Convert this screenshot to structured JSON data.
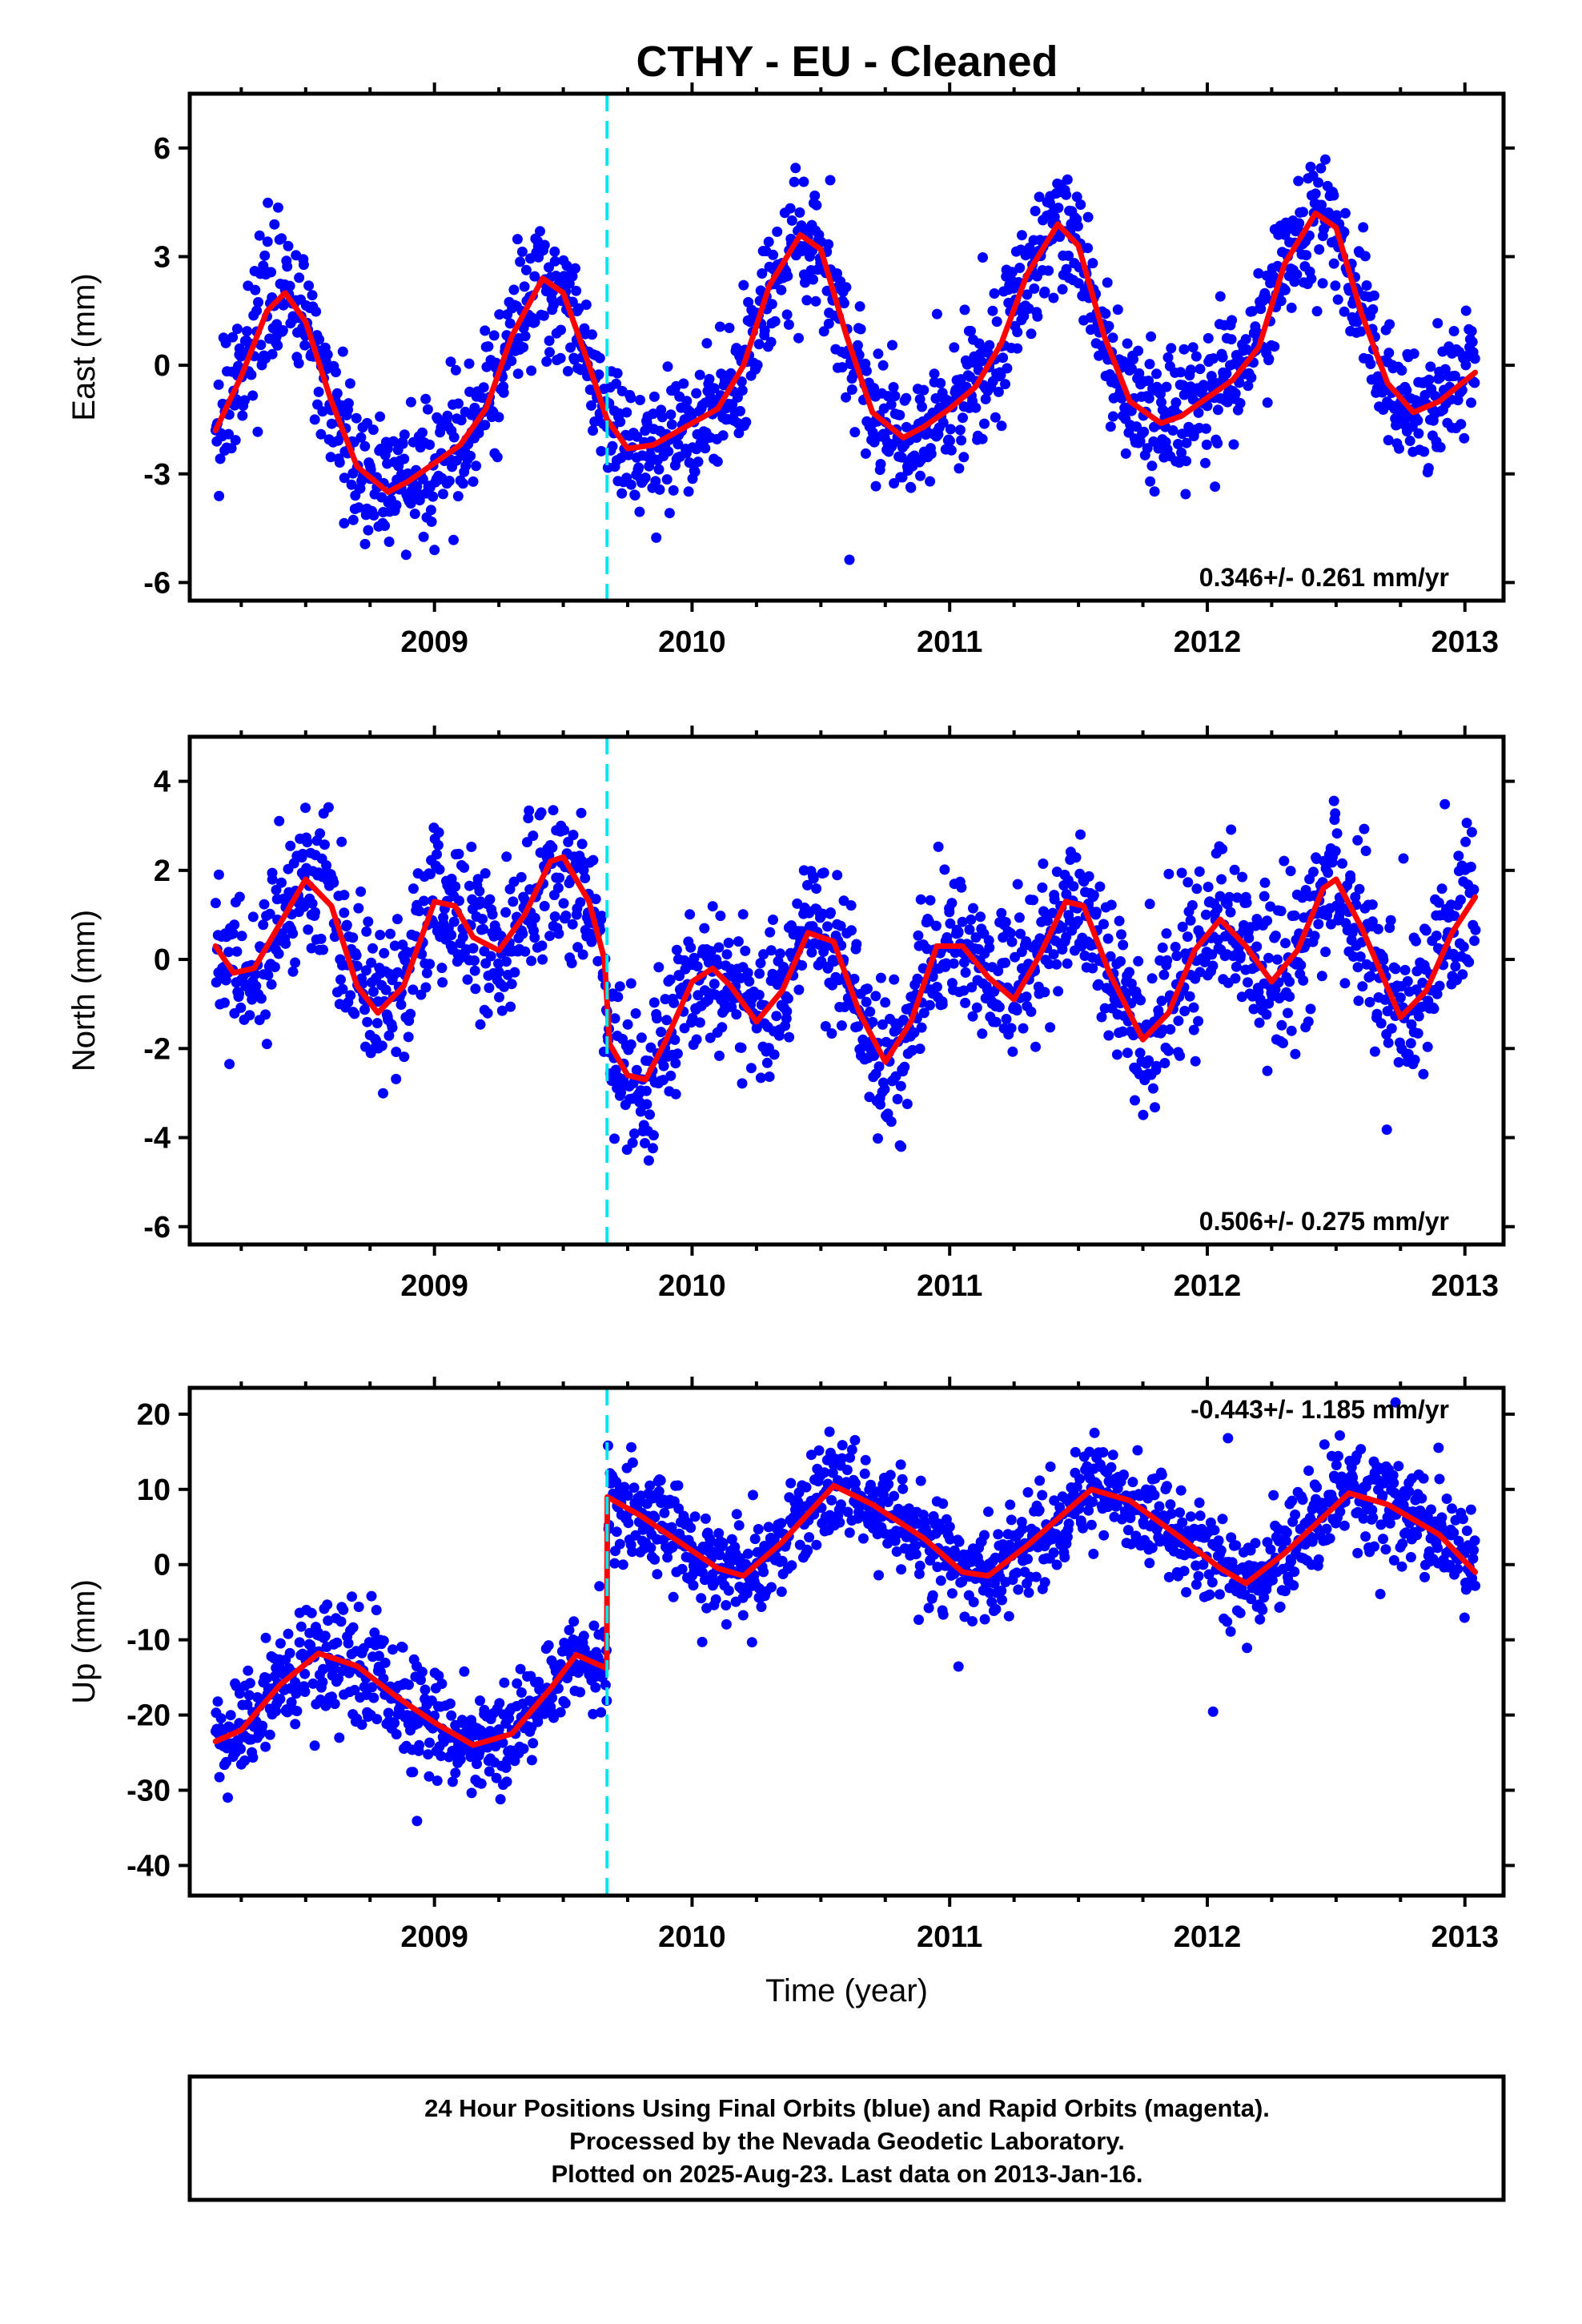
{
  "title": "CTHY  - EU - Cleaned",
  "footer": {
    "line1": "24 Hour Positions Using Final Orbits (blue) and Rapid Orbits (magenta).",
    "line2": "Processed by the Nevada Geodetic Laboratory.",
    "line3": "Plotted on 2025-Aug-23. Last data on 2013-Jan-16."
  },
  "colors": {
    "data_points": "#0000ff",
    "model_fit": "#ff0000",
    "step_line": "#00e5ee",
    "axes": "#000000"
  },
  "chart_data": [
    {
      "type": "scatter",
      "ylabel": "East (mm)",
      "xlabel": "",
      "rate_label": "0.346+/- 0.261 mm/yr",
      "xlim": [
        2008.05,
        2013.15
      ],
      "ylim": [
        -6.5,
        7.5
      ],
      "yticks": [
        -6,
        -3,
        0,
        3,
        6
      ],
      "ytick_labels": [
        "-6",
        "-3",
        "0",
        "3",
        "6"
      ],
      "xticks": [
        2009,
        2010,
        2011,
        2012,
        2013
      ],
      "xtick_labels": [
        "2009",
        "2010",
        "2011",
        "2012",
        "2013"
      ],
      "step_epoch": 2009.67,
      "data_range": [
        2008.15,
        2013.04
      ],
      "model": {
        "name": "fit",
        "x": [
          2008.15,
          2008.25,
          2008.35,
          2008.42,
          2008.5,
          2008.6,
          2008.7,
          2008.82,
          2008.9,
          2009.0,
          2009.1,
          2009.2,
          2009.3,
          2009.42,
          2009.5,
          2009.6,
          2009.67,
          2009.75,
          2009.85,
          2010.0,
          2010.1,
          2010.2,
          2010.3,
          2010.42,
          2010.5,
          2010.6,
          2010.7,
          2010.82,
          2010.9,
          2011.0,
          2011.1,
          2011.2,
          2011.3,
          2011.42,
          2011.5,
          2011.6,
          2011.7,
          2011.82,
          2011.9,
          2012.0,
          2012.1,
          2012.2,
          2012.3,
          2012.42,
          2012.5,
          2012.6,
          2012.7,
          2012.8,
          2012.9,
          2013.04
        ],
        "y": [
          -1.8,
          -0.3,
          1.5,
          2.0,
          1.2,
          -1.0,
          -2.8,
          -3.5,
          -3.2,
          -2.7,
          -2.2,
          -1.2,
          0.8,
          2.4,
          2.0,
          0.0,
          -1.5,
          -2.3,
          -2.2,
          -1.6,
          -1.2,
          0.0,
          2.2,
          3.6,
          3.2,
          0.8,
          -1.3,
          -2.0,
          -1.7,
          -1.2,
          -0.6,
          0.6,
          2.5,
          3.9,
          3.3,
          0.8,
          -1.0,
          -1.6,
          -1.4,
          -0.9,
          -0.4,
          0.5,
          2.8,
          4.2,
          3.8,
          1.4,
          -0.5,
          -1.3,
          -1.0,
          -0.2
        ]
      },
      "points": {
        "name": "daily positions",
        "count": 1700,
        "scatter_sd": 0.9
      }
    },
    {
      "type": "scatter",
      "ylabel": "North (mm)",
      "xlabel": "",
      "rate_label": "0.506+/- 0.275 mm/yr",
      "xlim": [
        2008.05,
        2013.15
      ],
      "ylim": [
        -6.4,
        5.0
      ],
      "yticks": [
        -6,
        -4,
        -2,
        0,
        2,
        4
      ],
      "ytick_labels": [
        "-6",
        "-4",
        "-2",
        "0",
        "2",
        "4"
      ],
      "xticks": [
        2009,
        2010,
        2011,
        2012,
        2013
      ],
      "xtick_labels": [
        "2009",
        "2010",
        "2011",
        "2012",
        "2013"
      ],
      "step_epoch": 2009.67,
      "data_range": [
        2008.15,
        2013.04
      ],
      "model": {
        "name": "fit",
        "x": [
          2008.15,
          2008.22,
          2008.3,
          2008.4,
          2008.5,
          2008.6,
          2008.7,
          2008.78,
          2008.88,
          2009.0,
          2009.08,
          2009.15,
          2009.25,
          2009.35,
          2009.45,
          2009.5,
          2009.6,
          2009.66,
          2009.68,
          2009.75,
          2009.82,
          2009.9,
          2010.0,
          2010.08,
          2010.15,
          2010.25,
          2010.35,
          2010.45,
          2010.55,
          2010.65,
          2010.75,
          2010.85,
          2010.95,
          2011.05,
          2011.15,
          2011.25,
          2011.35,
          2011.45,
          2011.52,
          2011.62,
          2011.75,
          2011.85,
          2011.95,
          2012.05,
          2012.15,
          2012.25,
          2012.35,
          2012.45,
          2012.5,
          2012.6,
          2012.75,
          2012.85,
          2012.95,
          2013.04
        ],
        "y": [
          0.3,
          -0.3,
          -0.2,
          0.8,
          1.8,
          1.2,
          -0.6,
          -1.2,
          -0.6,
          1.3,
          1.2,
          0.5,
          0.2,
          1.0,
          2.2,
          2.3,
          1.3,
          0.0,
          -1.9,
          -2.6,
          -2.7,
          -1.8,
          -0.5,
          -0.2,
          -0.6,
          -1.4,
          -0.7,
          0.6,
          0.4,
          -1.2,
          -2.3,
          -1.4,
          0.3,
          0.3,
          -0.4,
          -0.9,
          0.1,
          1.3,
          1.2,
          -0.3,
          -1.8,
          -1.2,
          0.2,
          0.9,
          0.3,
          -0.5,
          0.2,
          1.6,
          1.8,
          0.7,
          -1.3,
          -0.7,
          0.6,
          1.4
        ]
      },
      "points": {
        "name": "daily positions",
        "count": 1700,
        "scatter_sd": 0.85
      }
    },
    {
      "type": "scatter",
      "ylabel": "Up (mm)",
      "xlabel": "Time (year)",
      "rate_label": "-0.443+/- 1.185 mm/yr",
      "xlim": [
        2008.05,
        2013.15
      ],
      "ylim": [
        -44,
        23.5
      ],
      "yticks": [
        -40,
        -30,
        -20,
        -10,
        0,
        10,
        20
      ],
      "ytick_labels": [
        "-40",
        "-30",
        "-20",
        "-10",
        "0",
        "10",
        "20"
      ],
      "xticks": [
        2009,
        2010,
        2011,
        2012,
        2013
      ],
      "xtick_labels": [
        "2009",
        "2010",
        "2011",
        "2012",
        "2013"
      ],
      "step_epoch": 2009.67,
      "data_range": [
        2008.15,
        2013.04
      ],
      "model": {
        "name": "fit",
        "x": [
          2008.15,
          2008.25,
          2008.4,
          2008.55,
          2008.7,
          2008.85,
          2009.0,
          2009.15,
          2009.3,
          2009.45,
          2009.55,
          2009.669,
          2009.671,
          2009.8,
          2009.95,
          2010.1,
          2010.2,
          2010.35,
          2010.55,
          2010.7,
          2010.9,
          2011.05,
          2011.15,
          2011.3,
          2011.55,
          2011.7,
          2011.9,
          2012.05,
          2012.15,
          2012.3,
          2012.55,
          2012.7,
          2012.9,
          2013.04
        ],
        "y": [
          -23.5,
          -22.0,
          -16.0,
          -11.8,
          -13.5,
          -17.5,
          -21.0,
          -24.0,
          -22.5,
          -16.5,
          -12.0,
          -13.8,
          9.0,
          6.5,
          3.0,
          -0.5,
          -1.5,
          3.0,
          10.5,
          8.0,
          3.5,
          -1.0,
          -1.5,
          2.5,
          10.0,
          8.5,
          3.5,
          -0.5,
          -2.5,
          1.5,
          9.5,
          8.0,
          4.0,
          -1.0
        ]
      },
      "points": {
        "name": "daily positions",
        "count": 1700,
        "scatter_sd": 3.4
      }
    }
  ]
}
